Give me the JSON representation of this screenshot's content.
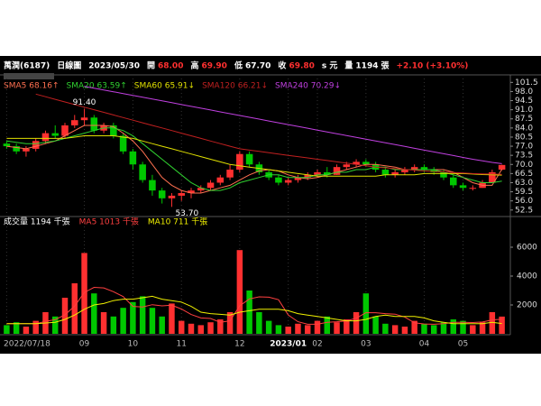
{
  "chart_data": {
    "type": "candlestick",
    "header": [
      {
        "text": "萬潤(6187)",
        "color": "#ffffff"
      },
      {
        "text": "日線圖",
        "color": "#ffffff"
      },
      {
        "text": "2023/05/30",
        "color": "#ffffff"
      },
      {
        "text": "開",
        "color": "#ffffff"
      },
      {
        "text": "68.00",
        "color": "#ff3030"
      },
      {
        "text": "高",
        "color": "#ffffff"
      },
      {
        "text": "69.90",
        "color": "#ff3030"
      },
      {
        "text": "低",
        "color": "#ffffff"
      },
      {
        "text": "67.70",
        "color": "#ffffff"
      },
      {
        "text": "收",
        "color": "#ffffff"
      },
      {
        "text": "69.80",
        "color": "#ff3030"
      },
      {
        "text": "s 元",
        "color": "#ffffff"
      },
      {
        "text": "量",
        "color": "#ffffff"
      },
      {
        "text": "1194",
        "color": "#ffffff"
      },
      {
        "text": "張",
        "color": "#ffffff"
      },
      {
        "text": "+2.10 (+3.10%)",
        "color": "#ff3030"
      }
    ],
    "categories": [
      "2022/07/18",
      null,
      null,
      null,
      null,
      null,
      null,
      null,
      "09",
      null,
      null,
      null,
      null,
      "10",
      null,
      null,
      null,
      null,
      "11",
      null,
      null,
      null,
      null,
      null,
      "12",
      null,
      null,
      null,
      null,
      "2023/01",
      null,
      null,
      "02",
      null,
      null,
      null,
      null,
      "03",
      null,
      null,
      null,
      null,
      null,
      "04",
      null,
      null,
      null,
      "05",
      null,
      null,
      null,
      null
    ],
    "candles": [
      [
        78,
        79,
        76,
        77
      ],
      [
        77,
        78,
        74,
        75
      ],
      [
        75,
        77,
        73,
        76
      ],
      [
        76,
        80,
        75,
        79
      ],
      [
        79,
        83,
        78,
        82
      ],
      [
        82,
        85,
        80,
        81
      ],
      [
        81,
        86,
        80,
        85
      ],
      [
        85,
        89,
        84,
        87
      ],
      [
        87,
        91.4,
        85,
        88
      ],
      [
        88,
        89,
        82,
        83
      ],
      [
        83,
        86,
        82,
        85
      ],
      [
        85,
        86,
        80,
        81
      ],
      [
        81,
        82,
        74,
        75
      ],
      [
        75,
        76,
        68,
        70
      ],
      [
        70,
        71,
        63,
        64
      ],
      [
        64,
        66,
        58,
        60
      ],
      [
        60,
        61,
        55,
        57
      ],
      [
        57,
        59,
        53.7,
        58
      ],
      [
        58,
        60,
        56,
        59
      ],
      [
        59,
        61,
        57,
        60
      ],
      [
        60,
        62,
        59,
        61
      ],
      [
        61,
        64,
        60,
        63
      ],
      [
        63,
        66,
        62,
        65
      ],
      [
        65,
        70,
        64,
        68
      ],
      [
        68,
        75,
        67,
        74
      ],
      [
        74,
        75,
        69,
        70
      ],
      [
        70,
        71,
        66,
        67
      ],
      [
        67,
        68,
        64,
        65
      ],
      [
        65,
        66,
        62,
        63
      ],
      [
        63,
        65,
        62,
        64
      ],
      [
        64,
        66,
        63,
        65
      ],
      [
        65,
        67,
        64,
        66
      ],
      [
        66,
        68,
        65,
        67
      ],
      [
        67,
        69,
        65,
        66
      ],
      [
        66,
        70,
        66,
        69
      ],
      [
        69,
        71,
        68,
        70
      ],
      [
        70,
        72,
        69,
        71
      ],
      [
        71,
        72,
        69,
        70
      ],
      [
        70,
        71,
        67,
        68
      ],
      [
        68,
        69,
        65,
        66
      ],
      [
        66,
        68,
        65,
        67
      ],
      [
        67,
        69,
        66,
        68
      ],
      [
        68,
        70,
        67,
        69
      ],
      [
        69,
        70,
        67,
        68
      ],
      [
        68,
        69,
        66,
        67
      ],
      [
        67,
        68,
        64,
        65
      ],
      [
        65,
        66,
        61,
        62
      ],
      [
        62,
        63,
        60,
        61
      ],
      [
        61,
        62,
        60,
        61
      ],
      [
        61,
        64,
        61,
        63
      ],
      [
        63,
        68,
        63,
        67
      ],
      [
        68,
        69.9,
        67.7,
        69.8
      ]
    ],
    "up_color": "#ff3030",
    "down_color": "#00c800",
    "annotations": [
      "91.40",
      "53.70"
    ],
    "series": [
      {
        "name": "SMA5 68.16↑",
        "color": "#ff7050",
        "values": [
          77,
          76.5,
          76,
          77,
          78,
          79,
          81,
          83,
          85,
          85,
          85,
          84.5,
          82,
          79,
          75,
          70,
          65,
          62,
          60,
          59,
          59,
          60,
          61,
          62,
          64,
          66,
          67.5,
          68,
          67.5,
          66,
          65,
          64.5,
          65,
          66,
          67,
          68,
          69,
          70,
          70,
          69.5,
          69,
          68,
          68,
          68,
          68,
          68,
          67,
          65,
          63,
          62,
          62,
          68.16
        ]
      },
      {
        "name": "SMA20 63.59↑",
        "color": "#30d030",
        "values": [
          79,
          78.5,
          78,
          78,
          78.5,
          79,
          80,
          81,
          82,
          83,
          84,
          84,
          83,
          81,
          78,
          75,
          72,
          69,
          66,
          63,
          61,
          60,
          60,
          61,
          63,
          64,
          65,
          66,
          66,
          65,
          65,
          65,
          66,
          66,
          67,
          67,
          68,
          68,
          69,
          69,
          68,
          68,
          68,
          68,
          68,
          67,
          66,
          65,
          64,
          63,
          63,
          63.59
        ]
      },
      {
        "name": "SMA60 65.91↓",
        "color": "#e0e000",
        "values": [
          80,
          80,
          80,
          80,
          80,
          80,
          80,
          80.5,
          81,
          81,
          81,
          81,
          80.5,
          80,
          79,
          78,
          77,
          76,
          75,
          74,
          73,
          72,
          71,
          70,
          69.5,
          69,
          68.5,
          68,
          67.5,
          67,
          66.5,
          66,
          65.5,
          65.5,
          65.5,
          65.5,
          65.5,
          65.5,
          65.5,
          66,
          66,
          66,
          66,
          66.5,
          66.5,
          66.5,
          66.5,
          66.5,
          66.3,
          66.1,
          66,
          65.91
        ]
      },
      {
        "name": "SMA120 66.21↓",
        "color": "#c02020",
        "values": [
          null,
          null,
          null,
          97,
          96,
          95,
          94,
          93,
          92,
          91,
          90,
          89,
          88,
          87,
          86,
          85,
          84,
          83,
          82,
          81,
          80,
          79,
          78,
          77,
          76,
          75.5,
          75,
          74.5,
          74,
          73.5,
          73,
          72.5,
          72,
          71.5,
          71,
          70.5,
          70,
          69.5,
          69,
          68.7,
          68.4,
          68.1,
          67.8,
          67.5,
          67.3,
          67.1,
          66.9,
          66.7,
          66.5,
          66.4,
          66.3,
          66.21
        ]
      },
      {
        "name": "SMA240 70.29↓",
        "color": "#c040e0",
        "values": [
          null,
          null,
          null,
          null,
          null,
          null,
          null,
          null,
          100,
          99.3,
          98.6,
          97.9,
          97.2,
          96.5,
          95.8,
          95.1,
          94.4,
          93.7,
          93,
          92.3,
          91.6,
          90.9,
          90.2,
          89.5,
          88.8,
          88.1,
          87.4,
          86.7,
          86,
          85.3,
          84.6,
          83.9,
          83.2,
          82.5,
          81.8,
          81.1,
          80.4,
          79.7,
          79,
          78.3,
          77.6,
          76.9,
          76.2,
          75.5,
          74.8,
          74.1,
          73.4,
          72.7,
          72,
          71.4,
          70.8,
          70.29
        ]
      }
    ],
    "ylim": [
      50,
      103
    ],
    "yticks": [
      101.5,
      {
        "value": 98,
        "label": "98.0"
      },
      94.5,
      {
        "value": 91,
        "label": "91.0"
      },
      87.5,
      {
        "value": 84,
        "label": "84.0"
      },
      80.5,
      {
        "value": 77,
        "label": "77.0"
      },
      73.5,
      {
        "value": 70,
        "label": "70.0"
      },
      66.5,
      {
        "value": 63,
        "label": "63.0"
      },
      59.5,
      {
        "value": 56,
        "label": "56.0"
      },
      52.5
    ],
    "volume": {
      "name": "成交量 1194 千張",
      "color": "#ffffff",
      "values": [
        600,
        800,
        500,
        900,
        1500,
        1200,
        2500,
        3500,
        5600,
        2800,
        1500,
        1200,
        1800,
        2200,
        2600,
        1800,
        1200,
        2100,
        900,
        700,
        600,
        800,
        1000,
        1500,
        5800,
        3000,
        1500,
        900,
        600,
        500,
        700,
        600,
        900,
        1200,
        800,
        1000,
        1500,
        2800,
        1200,
        700,
        600,
        500,
        900,
        700,
        600,
        800,
        1000,
        900,
        600,
        800,
        1500,
        1194
      ],
      "series": [
        {
          "name": "MA5 1013 千張",
          "color": "#ff4040",
          "values": [
            700,
            700,
            700,
            700,
            860,
            980,
            1320,
            1920,
            2860,
            3220,
            3180,
            2920,
            2580,
            1900,
            1860,
            2020,
            1940,
            1980,
            1720,
            1340,
            1100,
            1060,
            800,
            900,
            1940,
            2420,
            2560,
            2540,
            2360,
            1300,
            840,
            660,
            660,
            800,
            840,
            900,
            1080,
            1460,
            1460,
            1400,
            1360,
            1160,
            760,
            680,
            660,
            700,
            800,
            800,
            780,
            820,
            960,
            1013
          ]
        },
        {
          "name": "MA10 711 千張",
          "color": "#f0f000",
          "values": [
            700,
            700,
            700,
            700,
            750,
            800,
            1000,
            1300,
            1700,
            2000,
            2100,
            2300,
            2400,
            2400,
            2500,
            2600,
            2400,
            2300,
            2200,
            1900,
            1500,
            1400,
            1350,
            1300,
            1500,
            1600,
            1700,
            1700,
            1700,
            1600,
            1400,
            1300,
            1200,
            1100,
            1000,
            900,
            900,
            1000,
            1200,
            1300,
            1200,
            1200,
            1200,
            1100,
            900,
            800,
            700,
            700,
            700,
            700,
            800,
            711
          ]
        }
      ],
      "ylim": [
        0,
        7000
      ],
      "yticks": [
        2000,
        4000,
        6000
      ]
    }
  }
}
